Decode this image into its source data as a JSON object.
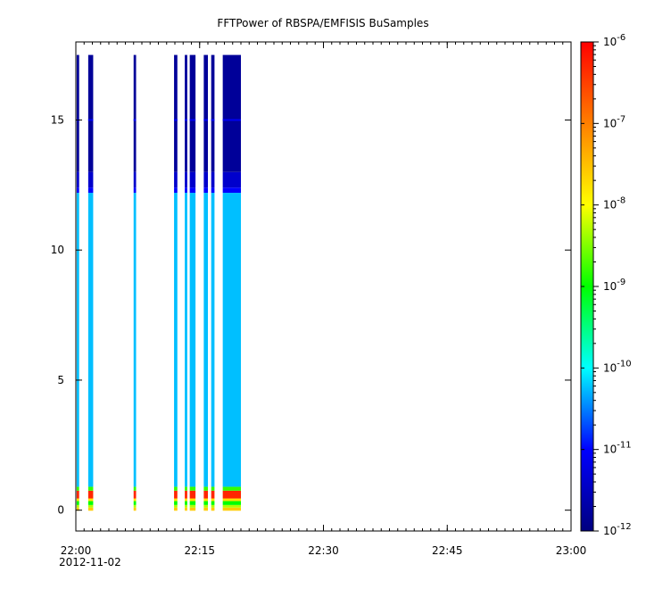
{
  "chart_data": {
    "type": "heatmap",
    "title": "FFTPower of RBSPA/EMFISIS  BuSamples",
    "xlabel": "",
    "ylabel": "",
    "x_axis": {
      "type": "time",
      "range": [
        "22:00",
        "23:00"
      ],
      "range_minutes": [
        0,
        60
      ],
      "major_ticks": [
        {
          "value": 0,
          "label": "22:00"
        },
        {
          "value": 15,
          "label": "22:15"
        },
        {
          "value": 30,
          "label": "22:30"
        },
        {
          "value": 45,
          "label": "22:45"
        },
        {
          "value": 60,
          "label": "23:00"
        }
      ],
      "minor_tick_step": 1,
      "date_label": "2012-11-02"
    },
    "y_axis": {
      "range": [
        -0.8,
        18.0
      ],
      "ticks": [
        0,
        5,
        10,
        15
      ]
    },
    "colorbar": {
      "scale": "log",
      "range": [
        1e-12,
        1e-06
      ],
      "colormap": [
        "#00007f",
        "#0000ff",
        "#00ffff",
        "#00ff00",
        "#ffff00",
        "#ff7f00",
        "#ff0000"
      ],
      "ticks": [
        {
          "mantissa": "10",
          "exponent": "-12"
        },
        {
          "mantissa": "10",
          "exponent": "-11"
        },
        {
          "mantissa": "10",
          "exponent": "-10"
        },
        {
          "mantissa": "10",
          "exponent": "-9"
        },
        {
          "mantissa": "10",
          "exponent": "-8"
        },
        {
          "mantissa": "10",
          "exponent": "-7"
        },
        {
          "mantissa": "10",
          "exponent": "-6"
        }
      ]
    },
    "frequency_max": 17.5,
    "intervals": [
      {
        "start": 0.1,
        "end": 0.4
      },
      {
        "start": 1.5,
        "end": 2.1
      },
      {
        "start": 7.0,
        "end": 7.3
      },
      {
        "start": 11.9,
        "end": 12.3
      },
      {
        "start": 13.2,
        "end": 13.5
      },
      {
        "start": 13.8,
        "end": 14.5
      },
      {
        "start": 15.5,
        "end": 16.0
      },
      {
        "start": 16.4,
        "end": 16.8
      },
      {
        "start": 17.8,
        "end": 20.0
      }
    ],
    "spectrum_bands": [
      {
        "from": -0.02,
        "to": 0.1,
        "log_power": -7.6
      },
      {
        "from": 0.1,
        "to": 0.2,
        "log_power": -8.3
      },
      {
        "from": 0.2,
        "to": 0.35,
        "log_power": -9.0
      },
      {
        "from": 0.35,
        "to": 0.45,
        "log_power": -7.8
      },
      {
        "from": 0.45,
        "to": 0.75,
        "log_power": -6.3
      },
      {
        "from": 0.75,
        "to": 0.9,
        "log_power": -8.8
      },
      {
        "from": 0.9,
        "to": 12.2,
        "log_power": -10.25
      },
      {
        "from": 12.2,
        "to": 12.4,
        "log_power": -11.0
      },
      {
        "from": 12.4,
        "to": 13.0,
        "log_power": -11.4
      },
      {
        "from": 13.0,
        "to": 17.5,
        "log_power": -11.8
      }
    ],
    "line_feature": {
      "frequency": 15.0,
      "log_power": -11.1
    }
  }
}
